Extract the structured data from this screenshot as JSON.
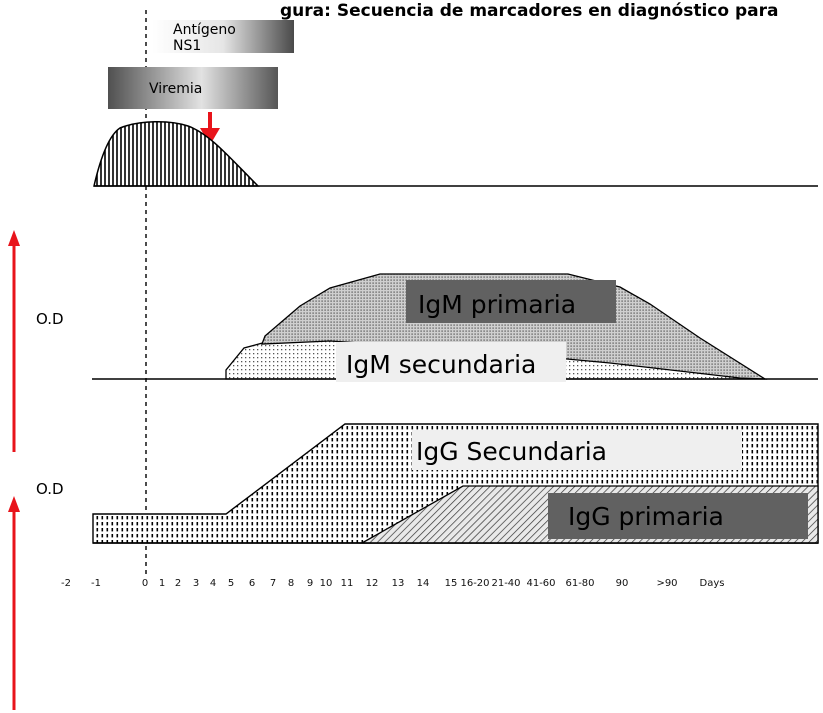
{
  "header_fragment": "gura: Secuencia de marcadores en diagnóstico para",
  "markers": {
    "antigen_line1": "Antígeno",
    "antigen_line2": "NS1",
    "viremia": "Viremia"
  },
  "labels": {
    "od_upper": "O.D",
    "od_lower": "O.D",
    "igm_primaria": "IgM primaria",
    "igm_secundaria": "IgM secundaria",
    "igg_secundaria": "IgG Secundaria",
    "igg_primaria": "IgG primaria"
  },
  "axis_ticks": [
    "-2",
    "-1",
    "0",
    "1",
    "2",
    "3",
    "4",
    "5",
    "6",
    "7",
    "8",
    "9",
    "10",
    "11",
    "12",
    "13",
    "14",
    "15",
    "16-20",
    "21-40",
    "41-60",
    "61-80",
    "90",
    ">90",
    "Days"
  ],
  "colors": {
    "arrow": "#e8141b",
    "dark_box": "#616161",
    "light_box": "#efefef",
    "outline": "#000000"
  }
}
